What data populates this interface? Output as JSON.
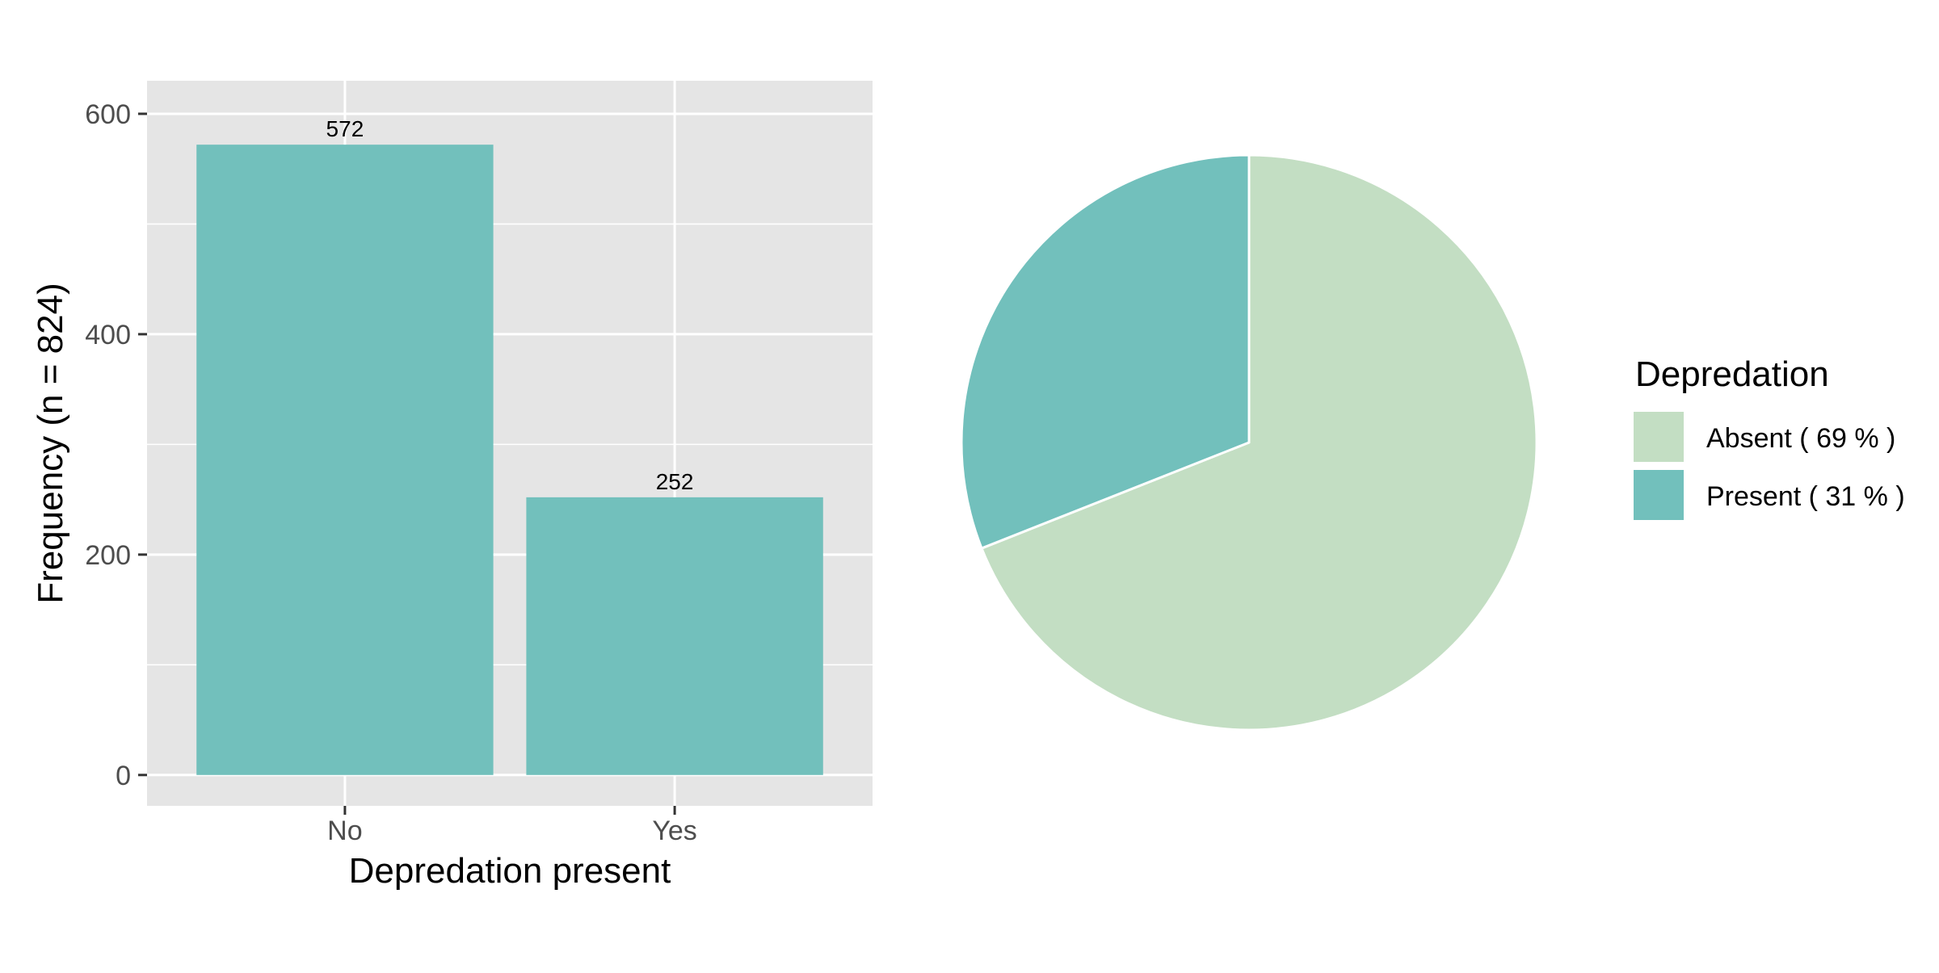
{
  "chart_data": [
    {
      "type": "bar",
      "categories": [
        "No",
        "Yes"
      ],
      "values": [
        572,
        252
      ],
      "data_labels": [
        "572",
        "252"
      ],
      "xlabel": "Depredation present",
      "ylabel": "Frequency (n = 824)",
      "ylim": [
        -28,
        630
      ],
      "yticks": [
        0,
        200,
        400,
        600
      ],
      "ytick_labels": [
        "0",
        "200",
        "400",
        "600"
      ],
      "grid": true,
      "bar_color": "#72C0BC",
      "panel_background": "#E5E5E5"
    },
    {
      "type": "pie",
      "legend_title": "Depredation",
      "legend_position": "right",
      "slices": [
        {
          "label": "Absent ( 69 % )",
          "value": 69,
          "color": "#C3DEC3"
        },
        {
          "label": "Present ( 31 % )",
          "value": 31,
          "color": "#72C0BC"
        }
      ]
    }
  ]
}
